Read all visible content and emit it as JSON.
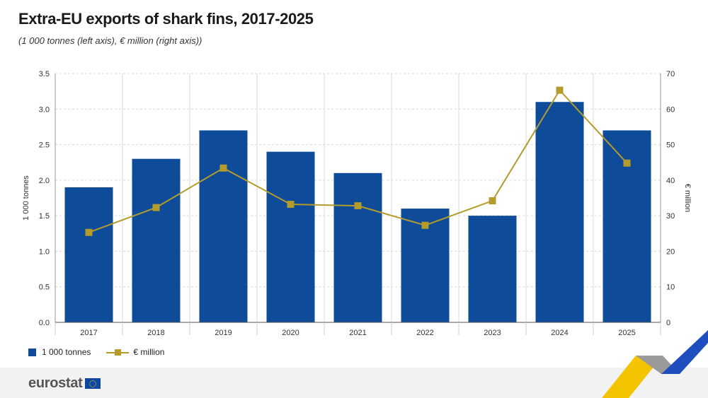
{
  "header": {
    "title": "Extra-EU exports of shark fins, 2017-2025",
    "subtitle": "(1 000 tonnes (left axis), € million (right axis))"
  },
  "legend": {
    "bar_label": "1 000 tonnes",
    "line_label": "€ million"
  },
  "footer": {
    "logo_text": "eurostat"
  },
  "colors": {
    "bar": "#0e4c9a",
    "line": "#b39b2c",
    "grid": "#d9d9d9",
    "footer_bg": "#f2f2f2",
    "accent_yellow": "#f5c400",
    "accent_blue": "#1f4fbf"
  },
  "chart_data": {
    "type": "bar",
    "categories": [
      "2017",
      "2018",
      "2019",
      "2020",
      "2021",
      "2022",
      "2023",
      "2024",
      "2025"
    ],
    "series": [
      {
        "name": "1 000 tonnes",
        "type": "bar",
        "axis": "left",
        "values": [
          1.9,
          2.3,
          2.7,
          2.4,
          2.1,
          1.6,
          1.5,
          3.1,
          2.7
        ]
      },
      {
        "name": "€ million",
        "type": "line",
        "axis": "right",
        "values": [
          25.3,
          32.3,
          43.4,
          33.2,
          32.8,
          27.3,
          34.2,
          65.3,
          44.8
        ]
      }
    ],
    "ylabel": "1 000 tonnes",
    "y2label": "€ million",
    "ylim": [
      0,
      3.5
    ],
    "y2lim": [
      0,
      70
    ],
    "yticks": [
      "0.0",
      "0.5",
      "1.0",
      "1.5",
      "2.0",
      "2.5",
      "3.0",
      "3.5"
    ],
    "y2ticks": [
      "0",
      "10",
      "20",
      "30",
      "40",
      "50",
      "60",
      "70"
    ],
    "grid": true,
    "legend": "bottom-left"
  }
}
